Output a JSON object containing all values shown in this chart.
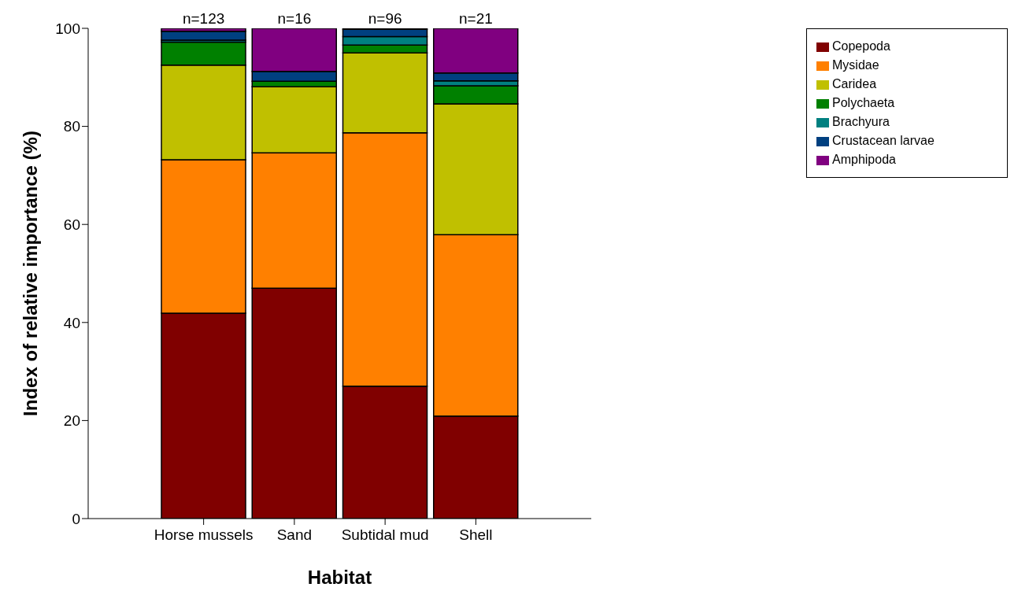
{
  "chart_data": {
    "type": "bar",
    "stacked": true,
    "xlabel": "Habitat",
    "ylabel": "Index of relative importance (%)",
    "categories": [
      "Horse mussels",
      "Sand",
      "Subtidal mud",
      "Shell"
    ],
    "series": [
      {
        "name": "Copepoda",
        "color": "#800000",
        "values": [
          41.9,
          47.0,
          27.0,
          20.9
        ]
      },
      {
        "name": "Mysidae",
        "color": "#ff8000",
        "values": [
          31.3,
          27.6,
          51.7,
          37.0
        ]
      },
      {
        "name": "Caridea",
        "color": "#c0c000",
        "values": [
          19.3,
          13.5,
          16.3,
          26.7
        ]
      },
      {
        "name": "Polychaeta",
        "color": "#008000",
        "values": [
          4.7,
          1.1,
          1.6,
          3.7
        ]
      },
      {
        "name": "Brachyura",
        "color": "#008080",
        "values": [
          0.4,
          0,
          1.7,
          1.0
        ]
      },
      {
        "name": "Crustacean larvae",
        "color": "#004080",
        "values": [
          1.8,
          2.0,
          1.5,
          1.6
        ]
      },
      {
        "name": "Amphipoda",
        "color": "#800080",
        "values": [
          0.6,
          8.8,
          0.2,
          9.1
        ]
      }
    ],
    "ylim": [
      0,
      100
    ],
    "yticks": [
      0,
      20,
      40,
      60,
      80,
      100
    ],
    "grid": false,
    "legend": "top right",
    "annotations": [
      {
        "text": "n=123",
        "x": "Horse mussels",
        "y": 100
      },
      {
        "text": "n=16",
        "x": "Sand",
        "y": 100
      },
      {
        "text": "n=96",
        "x": "Subtidal mud",
        "y": 100
      },
      {
        "text": "n=21",
        "x": "Shell",
        "y": 100
      }
    ]
  }
}
